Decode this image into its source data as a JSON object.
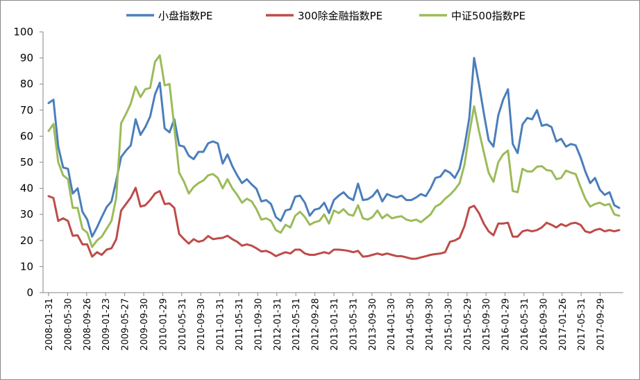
{
  "chart_data": {
    "type": "line",
    "title": "",
    "xlabel": "",
    "ylabel": "",
    "ylim": [
      0,
      100
    ],
    "yticks": [
      0,
      10,
      20,
      30,
      40,
      50,
      60,
      70,
      80,
      90,
      100
    ],
    "grid": false,
    "legend_position": "top",
    "x_tick_labels": [
      "2008-01-31",
      "2008-05-30",
      "2008-09-26",
      "2009-01-23",
      "2009-05-27",
      "2009-09-30",
      "2010-01-29",
      "2010-05-31",
      "2010-09-30",
      "2011-01-31",
      "2011-05-31",
      "2011-09-30",
      "2012-01-31",
      "2012-05-31",
      "2012-09-28",
      "2013-01-31",
      "2013-05-31",
      "2013-09-30",
      "2014-01-30",
      "2014-05-30",
      "2014-09-30",
      "2015-01-30",
      "2015-05-29",
      "2015-09-30",
      "2016-01-29",
      "2016-05-31",
      "2016-09-30",
      "2017-01-26",
      "2017-05-31",
      "2017-09-29"
    ],
    "series": [
      {
        "name": "小盘指数PE",
        "color": "#4a7ebb",
        "values": [
          72.7,
          74,
          56,
          48,
          47.5,
          38,
          40,
          31,
          28,
          21.5,
          25,
          29,
          32.8,
          35,
          43,
          52,
          54.5,
          56.5,
          66.5,
          60.5,
          63.5,
          67.5,
          76,
          80.5,
          63,
          61.5,
          66.5,
          56.5,
          56,
          52.5,
          51.2,
          54,
          54,
          57.3,
          58,
          57.2,
          49.5,
          53,
          48.5,
          45,
          42,
          43.5,
          41.5,
          39.8,
          35,
          35.5,
          34,
          29,
          27.5,
          31.5,
          32,
          36.8,
          37.2,
          34.5,
          29.5,
          31.8,
          32.3,
          34.5,
          30.5,
          35.5,
          37.2,
          38.5,
          36.5,
          35.5,
          41.8,
          35.5,
          35.8,
          37,
          39.4,
          35,
          37.8,
          37,
          36.5,
          37.2,
          35.5,
          35.5,
          36.5,
          37.8,
          37,
          40,
          44,
          44.5,
          47,
          46,
          44,
          47.5,
          56,
          67,
          90,
          80,
          69,
          58.5,
          56,
          68,
          74,
          78,
          57,
          53.5,
          64.5,
          67,
          66.5,
          70,
          64,
          64.5,
          63.5,
          58,
          59,
          56,
          57,
          56.5,
          52,
          46.5,
          42,
          44,
          39.5,
          37.5,
          38.5,
          33.5,
          32.5
        ]
      },
      {
        "name": "300除金融指数PE",
        "color": "#be4b48",
        "values": [
          37,
          36.3,
          27.5,
          28.5,
          27.5,
          21.8,
          22,
          18.5,
          18.5,
          13.8,
          15.5,
          14.5,
          16.5,
          17,
          20.5,
          31.5,
          34,
          36.5,
          40.2,
          33,
          33.5,
          35.5,
          38,
          39,
          34,
          34.2,
          32.5,
          22.5,
          20.5,
          18.8,
          20.5,
          19.5,
          20,
          21.7,
          20.5,
          20.8,
          21,
          21.8,
          20.5,
          19.5,
          18,
          18.5,
          18,
          17,
          15.8,
          16,
          15.2,
          14,
          14.8,
          15.5,
          15,
          16.5,
          16.5,
          15,
          14.5,
          14.5,
          15,
          15.5,
          15,
          16.5,
          16.5,
          16.3,
          16,
          15.5,
          16,
          13.8,
          14,
          14.5,
          15,
          14.5,
          15,
          14.5,
          14,
          14,
          13.5,
          13,
          13,
          13.5,
          14,
          14.5,
          14.8,
          15,
          15.5,
          19.5,
          20,
          21,
          25.5,
          32.5,
          33.3,
          30.5,
          26.5,
          23.5,
          22,
          26.5,
          26.5,
          26.8,
          21.5,
          21.5,
          23.5,
          24,
          23.5,
          24,
          25,
          26.8,
          26,
          25,
          26.3,
          25.5,
          26.5,
          26.8,
          26,
          23.5,
          23,
          24,
          24.5,
          23.5,
          24,
          23.5,
          24
        ]
      },
      {
        "name": "中证500指数PE",
        "color": "#9bbb59",
        "values": [
          62,
          64.7,
          50,
          45,
          43.5,
          32.5,
          32.5,
          24.5,
          23,
          17.5,
          20,
          21.5,
          24.5,
          27.5,
          36.5,
          65,
          68.5,
          72.5,
          79,
          75,
          78,
          78.5,
          88.5,
          91,
          79.5,
          80,
          63.5,
          46,
          42.5,
          38,
          40.5,
          42,
          43,
          45,
          45.5,
          44,
          40,
          43.5,
          40,
          37.5,
          34.5,
          36,
          35,
          32,
          28,
          28.5,
          27.5,
          24,
          23,
          26,
          25,
          29.5,
          31,
          29,
          26,
          27,
          27.5,
          30,
          26.5,
          31.5,
          30.5,
          32,
          30,
          29.5,
          33.5,
          28.5,
          28,
          29,
          31.5,
          28.5,
          30,
          28.5,
          29,
          29.3,
          28,
          27.5,
          28,
          27,
          28.5,
          30,
          33,
          34,
          36,
          37.5,
          39.5,
          42,
          49,
          61,
          71.5,
          62,
          54,
          46,
          42.5,
          50,
          53,
          54.5,
          39,
          38.5,
          47.5,
          46.5,
          46.5,
          48.3,
          48.5,
          47,
          46.7,
          43.5,
          44,
          46.8,
          46,
          45.5,
          40.5,
          36,
          33,
          34,
          34.5,
          33.5,
          34,
          30,
          29.5
        ]
      }
    ]
  }
}
